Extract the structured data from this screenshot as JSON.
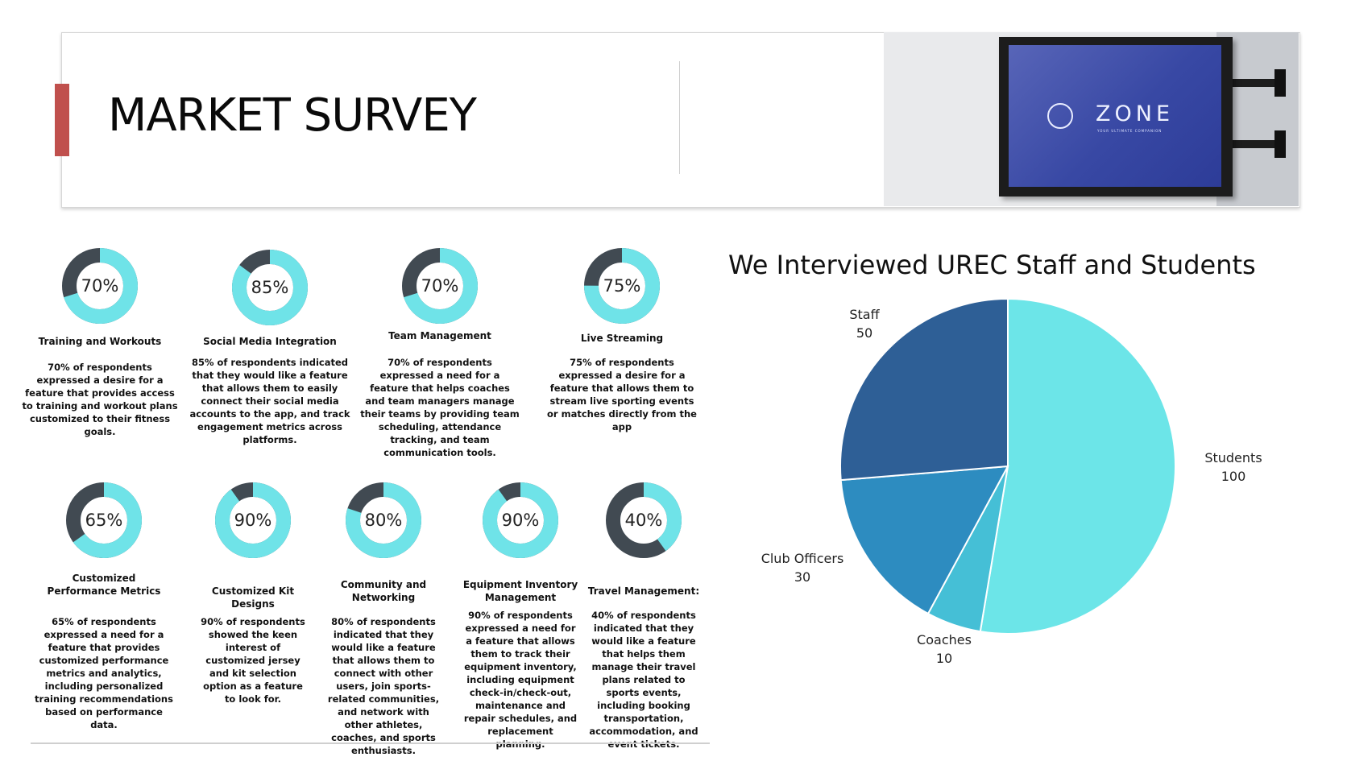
{
  "header": {
    "title": "MARKET SURVEY"
  },
  "sign": {
    "brand": "ZONE",
    "tagline": "YOUR ULTIMATE COMPANION"
  },
  "stats": [
    {
      "percent": 70,
      "label": "70%",
      "title": "Training and Workouts",
      "desc": "70% of respondents expressed a desire for a feature that provides access to training and workout plans customized to their fitness goals."
    },
    {
      "percent": 85,
      "label": "85%",
      "title": "Social Media Integration",
      "desc": "85% of respondents indicated that they would like a feature that allows them to easily connect their social media accounts to the app, and track engagement metrics across platforms."
    },
    {
      "percent": 70,
      "label": "70%",
      "title": "Team Management",
      "desc": "70% of respondents expressed a need for a feature that helps coaches and team managers manage their teams by providing team scheduling, attendance tracking, and team communication tools."
    },
    {
      "percent": 75,
      "label": "75%",
      "title": "Live Streaming",
      "desc": "75% of respondents expressed a desire for a feature that allows them to stream live sporting events or matches directly from the app"
    },
    {
      "percent": 65,
      "label": "65%",
      "title": "Customized Performance Metrics",
      "desc": "65% of respondents expressed a need for a feature that provides customized performance metrics and analytics, including personalized training recommendations based on performance data."
    },
    {
      "percent": 90,
      "label": "90%",
      "title": "Customized Kit Designs",
      "desc": "90% of respondents showed the keen interest of customized jersey and kit selection option as a feature to look for."
    },
    {
      "percent": 80,
      "label": "80%",
      "title": "Community and Networking",
      "desc": "80% of respondents indicated that they would like a feature that allows them to connect with other users, join sports-related communities, and network with other athletes, coaches, and sports enthusiasts."
    },
    {
      "percent": 90,
      "label": "90%",
      "title": "Equipment Inventory Management",
      "desc": "90% of respondents expressed a need for a feature that allows them to track their equipment inventory, including equipment check-in/check-out, maintenance and repair schedules, and replacement planning."
    },
    {
      "percent": 40,
      "label": "40%",
      "title": "Travel Management:",
      "desc": "40% of respondents indicated that they would like a feature that helps them manage their travel plans related to sports events, including booking transportation, accommodation, and event tickets."
    }
  ],
  "colors": {
    "donut_fill": "#6fe3e8",
    "donut_track": "#414a52",
    "accent": "#c0504d"
  },
  "chart_data": {
    "type": "pie",
    "title": "We Interviewed UREC Staff and Students",
    "categories": [
      "Students",
      "Coaches",
      "Club Officers",
      "Staff"
    ],
    "values": [
      100,
      10,
      30,
      50
    ],
    "colors": [
      "#6ce5e8",
      "#45bfd6",
      "#2d8cc0",
      "#2e5f96"
    ],
    "start_angle": "12 o'clock, clockwise"
  }
}
